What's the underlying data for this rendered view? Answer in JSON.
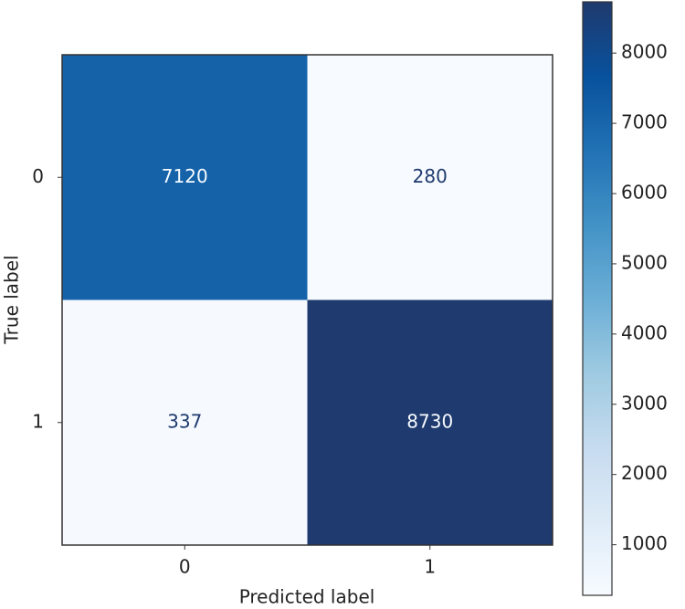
{
  "chart_data": {
    "type": "heatmap",
    "x_label": "Predicted label",
    "y_label": "True label",
    "x": [
      "0",
      "1"
    ],
    "y": [
      "0",
      "1"
    ],
    "values": [
      [
        7120,
        280
      ],
      [
        337,
        8730
      ]
    ],
    "cmap": [
      "#f7fbff",
      "#deebf7",
      "#c6dbef",
      "#9ecae1",
      "#6baed6",
      "#4292c6",
      "#2171b5",
      "#08519c",
      "#1f3a6e"
    ],
    "clim": [
      280,
      8730
    ],
    "cticks": [
      1000,
      2000,
      3000,
      4000,
      5000,
      6000,
      7000,
      8000
    ]
  }
}
